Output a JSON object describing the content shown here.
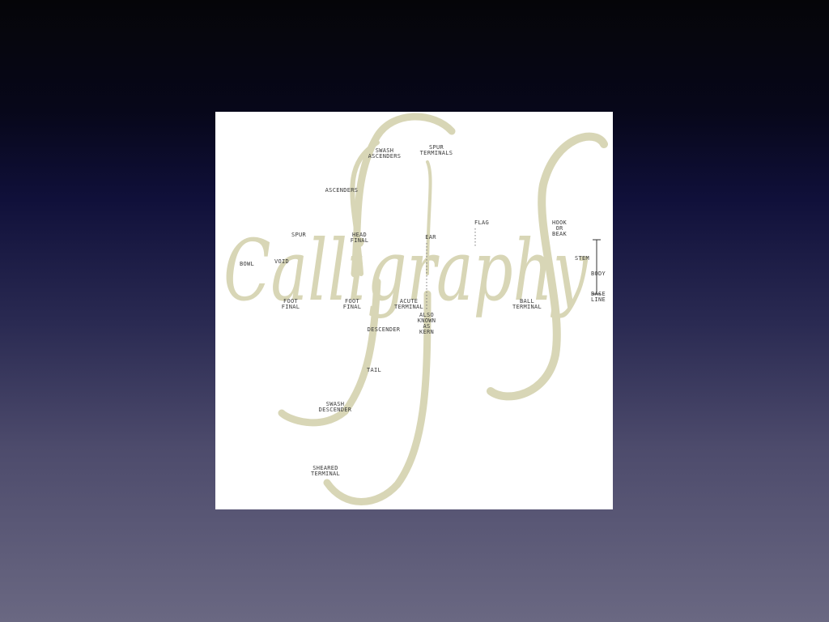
{
  "diagram": {
    "word": "Calligraphy",
    "labels": {
      "swash_ascenders": "SWASH\nASCENDERS",
      "spur_terminals": "SPUR\nTERMINALS",
      "ascenders": "ASCENDERS",
      "flag": "FLAG",
      "hook_or_beak": "HOOK\nOR\nBEAK",
      "spur": "SPUR",
      "head_final": "HEAD\nFINAL",
      "ear": "EAR",
      "stem": "STEM",
      "bowl": "BOWL",
      "void": "VOID",
      "body": "BODY",
      "base_line": "BASE\nLINE",
      "foot_final_1": "FOOT\nFINAL",
      "foot_final_2": "FOOT\nFINAL",
      "acute_terminal": "ACUTE\nTERMINAL",
      "ball_terminal": "BALL\nTERMINAL",
      "also_known_as_kern": "ALSO\nKNOWN\nAS\nKERN",
      "descender": "DESCENDER",
      "tail": "TAIL",
      "swash_descender": "SWASH\nDESCENDER",
      "sheared_terminal": "SHEARED\nTERMINAL"
    }
  },
  "colors": {
    "letter": "#d8d6b6",
    "label": "#3a3a3a",
    "panel": "#ffffff"
  }
}
